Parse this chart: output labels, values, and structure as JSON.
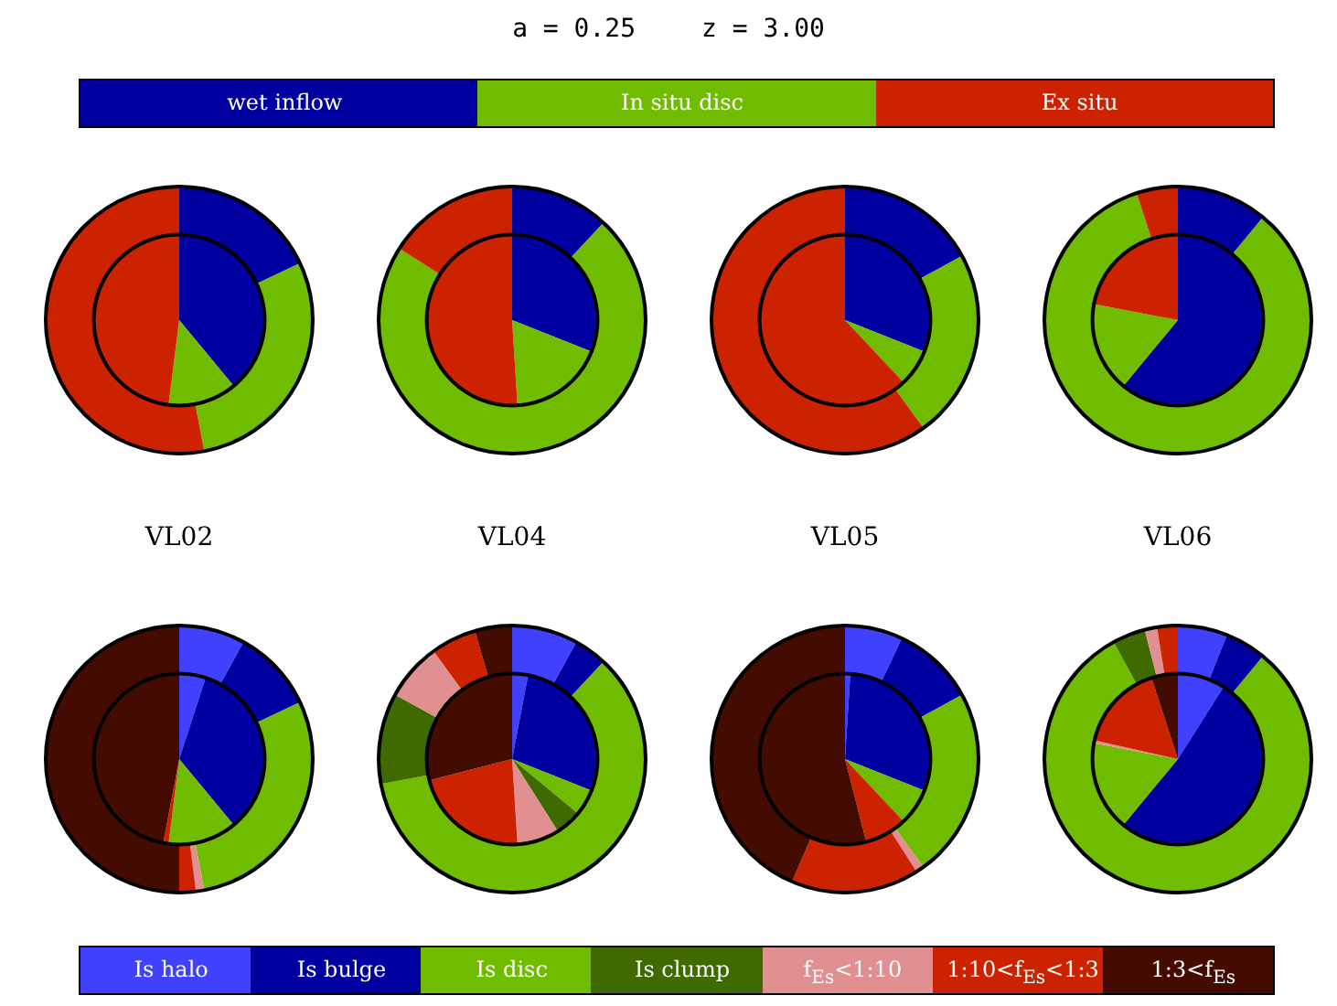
{
  "chart_data": [
    {
      "type": "pie",
      "annotations": [
        "a = 0.25",
        "z = 3.00",
        "VL02",
        "VL04",
        "VL05",
        "VL06"
      ],
      "legend": "top",
      "categories": [
        "wet inflow",
        "In situ disc",
        "Ex situ"
      ],
      "colors": [
        "#0000a0",
        "#70bc00",
        "#cc2200"
      ],
      "series": [
        {
          "values": [
            39,
            13,
            48
          ]
        },
        {
          "values": [
            18,
            29,
            53
          ]
        },
        {
          "values": [
            31,
            18,
            51
          ]
        },
        {
          "values": [
            12,
            72,
            16
          ]
        },
        {
          "values": [
            31,
            7,
            62
          ]
        },
        {
          "values": [
            17,
            23,
            60
          ]
        },
        {
          "values": [
            61,
            17,
            22
          ]
        },
        {
          "values": [
            11,
            84,
            5
          ]
        }
      ]
    },
    {
      "type": "pie",
      "legend": "bottom",
      "categories": [
        "Is halo",
        "Is bulge",
        "Is disc",
        "Is clump",
        "f$_{Es}$<1:10",
        "1:10<f$_{Es}$<1:3",
        "1:3<f$_{Es}$"
      ],
      "colors": [
        "#4040ff",
        "#0000a0",
        "#70bc00",
        "#3f6a00",
        "#e09090",
        "#cc2200",
        "#440c00"
      ],
      "series": [
        {
          "values": [
            5,
            34,
            13,
            0,
            0,
            1,
            47
          ]
        },
        {
          "values": [
            8,
            10,
            29,
            0,
            1,
            2,
            50
          ]
        },
        {
          "values": [
            3,
            28,
            5,
            5,
            8,
            22,
            29
          ]
        },
        {
          "values": [
            8,
            4,
            60,
            11,
            7,
            5.5,
            4.5
          ]
        },
        {
          "values": [
            1,
            30,
            7,
            0,
            0,
            8,
            54
          ]
        },
        {
          "values": [
            7,
            10,
            23,
            0,
            1,
            15.5,
            43.5
          ]
        },
        {
          "values": [
            9,
            52,
            17,
            0,
            0.5,
            16.5,
            5
          ]
        },
        {
          "values": [
            6,
            5,
            81,
            4,
            1.5,
            2.5,
            0
          ]
        }
      ]
    }
  ]
}
